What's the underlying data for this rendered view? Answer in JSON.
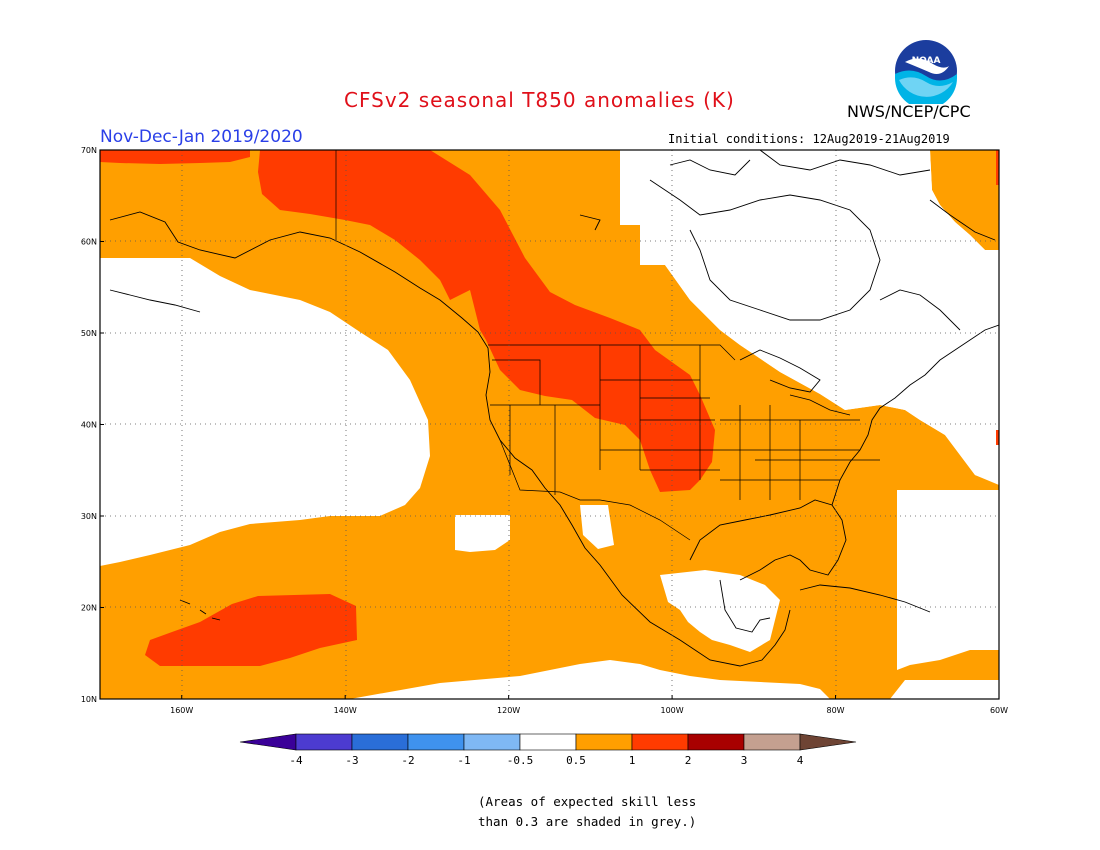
{
  "header": {
    "title": "CFSv2 seasonal T850 anomalies (K)",
    "season": "Nov-Dec-Jan 2019/2020",
    "agency": "NWS/NCEP/CPC",
    "initial_conditions": "Initial conditions: 12Aug2019-21Aug2019",
    "logo_text": "NOAA"
  },
  "map": {
    "lon_range": [
      -170,
      -60
    ],
    "lat_range": [
      10,
      70
    ],
    "lat_ticks": [
      {
        "value": 10,
        "label": "10N"
      },
      {
        "value": 20,
        "label": "20N"
      },
      {
        "value": 30,
        "label": "30N"
      },
      {
        "value": 40,
        "label": "40N"
      },
      {
        "value": 50,
        "label": "50N"
      },
      {
        "value": 60,
        "label": "60N"
      },
      {
        "value": 70,
        "label": "70N"
      }
    ],
    "lon_ticks": [
      {
        "value": -160,
        "label": "160W"
      },
      {
        "value": -140,
        "label": "140W"
      },
      {
        "value": -120,
        "label": "120W"
      },
      {
        "value": -100,
        "label": "100W"
      },
      {
        "value": -80,
        "label": "80W"
      },
      {
        "value": -60,
        "label": "60W"
      }
    ],
    "grid": true,
    "shading_colors": {
      "0.5-1": "#ff9f00",
      "1-2": "#ff3b00"
    }
  },
  "colorbar": {
    "colors": [
      "#3a0098",
      "#4c3bd0",
      "#2a6ed8",
      "#3f92ee",
      "#7fb8f4",
      "#ffffff",
      "#ff9f00",
      "#ff3b00",
      "#a80000",
      "#c4a090",
      "#6e4434"
    ],
    "labels": [
      "-4",
      "-3",
      "-2",
      "-1",
      "-0.5",
      "0.5",
      "1",
      "2",
      "3",
      "4"
    ]
  },
  "footnote": {
    "line1": "(Areas of expected skill less",
    "line2": "than 0.3 are shaded in grey.)"
  }
}
